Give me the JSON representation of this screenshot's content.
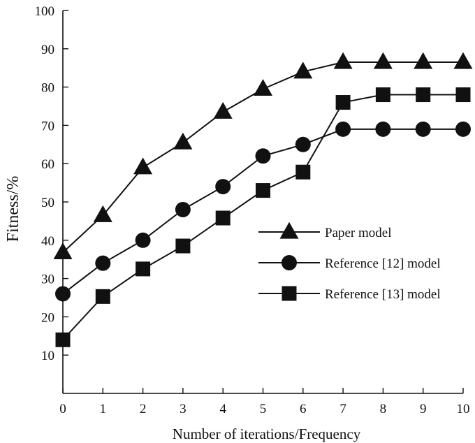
{
  "chart_data": {
    "type": "line",
    "title": "",
    "xlabel": "Number of iterations/Frequency",
    "ylabel": "Fitness/%",
    "x": [
      0,
      1,
      2,
      3,
      4,
      5,
      6,
      7,
      8,
      9,
      10
    ],
    "xlim": [
      0,
      10
    ],
    "ylim": [
      0,
      100
    ],
    "xticks": [
      "0",
      "1",
      "2",
      "3",
      "4",
      "5",
      "6",
      "7",
      "8",
      "9",
      "10"
    ],
    "yticks": [
      "10",
      "20",
      "30",
      "40",
      "50",
      "60",
      "70",
      "80",
      "90",
      "100"
    ],
    "grid": false,
    "legend_position": "right",
    "series": [
      {
        "name": "Paper model",
        "marker": "triangle",
        "values": [
          36.8,
          46.5,
          59.0,
          65.5,
          73.5,
          79.5,
          84.0,
          86.5,
          86.5,
          86.5,
          86.5
        ]
      },
      {
        "name": "Reference [12] model",
        "marker": "circle",
        "values": [
          26.0,
          34.0,
          40.0,
          48.0,
          54.0,
          62.0,
          65.0,
          69.0,
          69.0,
          69.0,
          69.0
        ]
      },
      {
        "name": "Reference [13] model",
        "marker": "square",
        "values": [
          14.0,
          25.3,
          32.5,
          38.5,
          45.8,
          53.0,
          57.8,
          76.0,
          78.0,
          78.0,
          78.0
        ]
      }
    ],
    "colors": {
      "line": "#111111",
      "marker": "#111111",
      "background": "#ffffff"
    }
  }
}
